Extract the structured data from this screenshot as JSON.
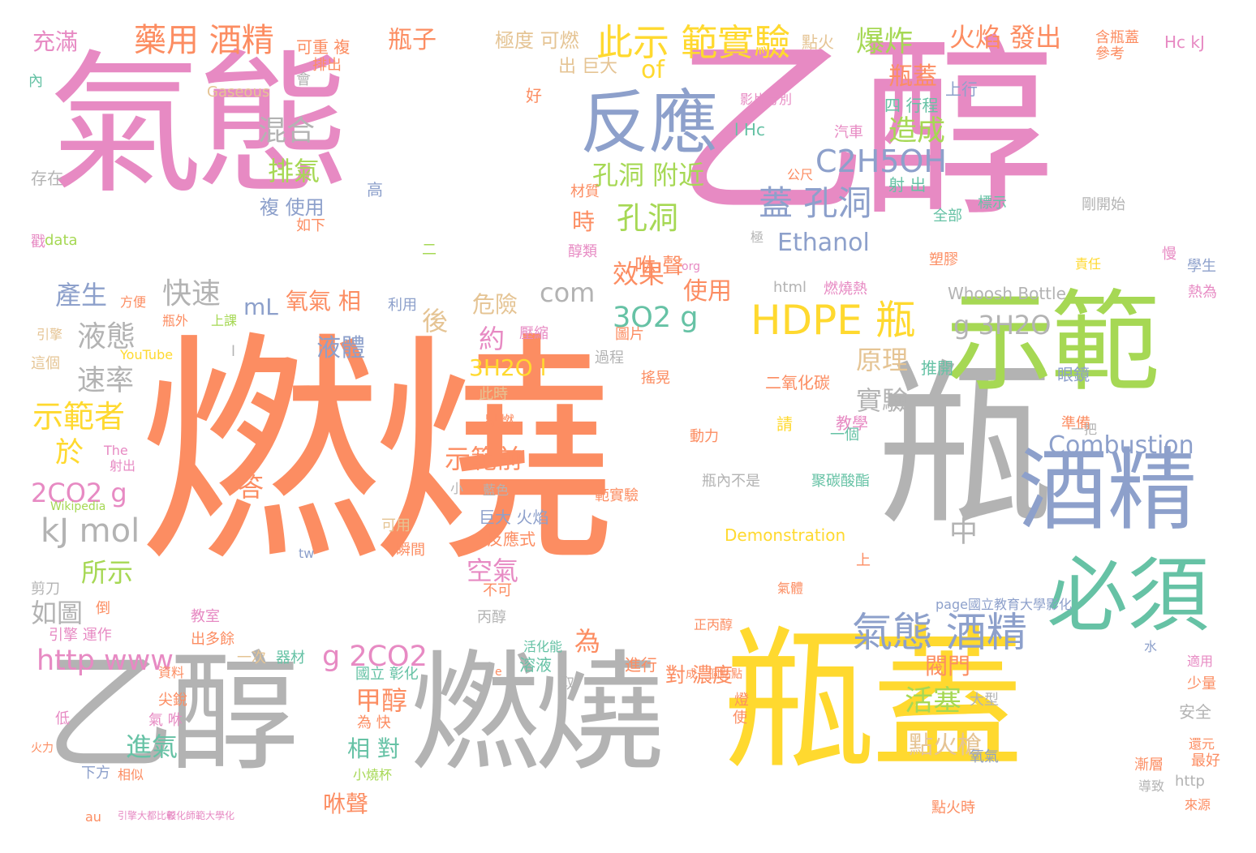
{
  "palette": {
    "orange": "#fc8d62",
    "pink": "#e78ac3",
    "green": "#a6d854",
    "gray": "#b3b3b3",
    "yellow": "#ffd92f",
    "blue": "#8da0cb",
    "teal": "#66c2a5",
    "tan": "#e5c494"
  },
  "words": [
    {
      "text": "燃燒",
      "color": "orange"
    },
    {
      "text": "乙醇",
      "color": "pink"
    },
    {
      "text": "氣態",
      "color": "pink"
    },
    {
      "text": "瓶",
      "color": "gray"
    },
    {
      "text": "瓶蓋",
      "color": "yellow"
    },
    {
      "text": "燃燒",
      "color": "gray"
    },
    {
      "text": "乙醇",
      "color": "gray"
    },
    {
      "text": "示範",
      "color": "green"
    },
    {
      "text": "酒精",
      "color": "blue"
    },
    {
      "text": "必須",
      "color": "teal"
    },
    {
      "text": "反應",
      "color": "blue"
    },
    {
      "text": "氣態 酒精",
      "color": "blue"
    },
    {
      "text": "HDPE 瓶",
      "color": "yellow"
    },
    {
      "text": "此示 範實驗",
      "color": "yellow"
    },
    {
      "text": "藥用 酒精",
      "color": "orange"
    },
    {
      "text": "蓋 孔洞",
      "color": "blue"
    },
    {
      "text": "爆炸",
      "color": "green"
    },
    {
      "text": "火焰 發出",
      "color": "orange"
    },
    {
      "text": "瓶子",
      "color": "orange"
    },
    {
      "text": "充滿",
      "color": "pink"
    },
    {
      "text": "瓶蓋",
      "color": "orange"
    },
    {
      "text": "造成",
      "color": "green"
    },
    {
      "text": "C2H5OH",
      "color": "blue"
    },
    {
      "text": "孔洞",
      "color": "green"
    },
    {
      "text": "混合",
      "color": "gray"
    },
    {
      "text": "排氣",
      "color": "green"
    },
    {
      "text": "孔洞 附近",
      "color": "green"
    },
    {
      "text": "Combustion",
      "color": "blue"
    },
    {
      "text": "kJ mol",
      "color": "gray"
    },
    {
      "text": "示範者",
      "color": "yellow"
    },
    {
      "text": "速率",
      "color": "gray"
    },
    {
      "text": "液態",
      "color": "gray"
    },
    {
      "text": "快速",
      "color": "gray"
    },
    {
      "text": "產生",
      "color": "blue"
    },
    {
      "text": "com",
      "color": "gray"
    },
    {
      "text": "效果",
      "color": "orange"
    },
    {
      "text": "3O2 g",
      "color": "teal"
    },
    {
      "text": "g 3H2O",
      "color": "gray"
    },
    {
      "text": "Ethanol",
      "color": "blue"
    },
    {
      "text": "原理",
      "color": "tan"
    },
    {
      "text": "實驗",
      "color": "gray"
    },
    {
      "text": "於",
      "color": "yellow"
    },
    {
      "text": "2CO2 g",
      "color": "pink"
    },
    {
      "text": "示範前",
      "color": "orange"
    },
    {
      "text": "如圖",
      "color": "gray"
    },
    {
      "text": "所示",
      "color": "green"
    },
    {
      "text": "http www",
      "color": "pink"
    },
    {
      "text": "g 2CO2",
      "color": "pink"
    },
    {
      "text": "中",
      "color": "gray"
    },
    {
      "text": "活塞",
      "color": "green"
    },
    {
      "text": "點火槍",
      "color": "tan"
    },
    {
      "text": "咻聲",
      "color": "orange"
    },
    {
      "text": "進氣",
      "color": "teal"
    },
    {
      "text": "相 對",
      "color": "teal"
    },
    {
      "text": "甲醇",
      "color": "orange"
    },
    {
      "text": "為",
      "color": "orange"
    },
    {
      "text": "空氣",
      "color": "pink"
    },
    {
      "text": "答",
      "color": "orange"
    },
    {
      "text": "後",
      "color": "tan"
    },
    {
      "text": "約",
      "color": "pink"
    },
    {
      "text": "危險",
      "color": "tan"
    },
    {
      "text": "使用",
      "color": "orange"
    },
    {
      "text": "時",
      "color": "orange"
    },
    {
      "text": "咻 聲",
      "color": "orange"
    },
    {
      "text": "mL",
      "color": "blue"
    },
    {
      "text": "氧氣 相",
      "color": "orange"
    },
    {
      "text": "液體",
      "color": "blue"
    },
    {
      "text": "3H2O l",
      "color": "yellow"
    },
    {
      "text": "of",
      "color": "yellow"
    },
    {
      "text": "閥門",
      "color": "orange"
    },
    {
      "text": "對 濃度",
      "color": "orange"
    },
    {
      "text": "複 使用",
      "color": "blue"
    },
    {
      "text": "極度 可燃",
      "color": "tan"
    },
    {
      "text": "可重 複",
      "color": "orange"
    },
    {
      "text": "排出",
      "color": "orange"
    },
    {
      "text": "出 巨大",
      "color": "tan"
    },
    {
      "text": "點火",
      "color": "tan"
    },
    {
      "text": "含瓶蓋",
      "color": "orange"
    },
    {
      "text": "參考",
      "color": "orange"
    },
    {
      "text": "Hc kJ",
      "color": "pink"
    },
    {
      "text": "Gaseous",
      "color": "tan"
    },
    {
      "text": "內",
      "color": "teal"
    },
    {
      "text": "會",
      "color": "gray"
    },
    {
      "text": "好",
      "color": "orange"
    },
    {
      "text": "上行",
      "color": "blue"
    },
    {
      "text": "四 行程",
      "color": "teal"
    },
    {
      "text": "影片分別",
      "color": "pink"
    },
    {
      "text": "l Hc",
      "color": "teal"
    },
    {
      "text": "汽車",
      "color": "pink"
    },
    {
      "text": "射 出",
      "color": "teal"
    },
    {
      "text": "存在",
      "color": "gray"
    },
    {
      "text": "高",
      "color": "blue"
    },
    {
      "text": "材質",
      "color": "orange"
    },
    {
      "text": "公尺",
      "color": "orange"
    },
    {
      "text": "全部",
      "color": "teal"
    },
    {
      "text": "標示",
      "color": "teal"
    },
    {
      "text": "剛開始",
      "color": "gray"
    },
    {
      "text": "如下",
      "color": "orange"
    },
    {
      "text": "data",
      "color": "green"
    },
    {
      "text": "戳",
      "color": "pink"
    },
    {
      "text": "二",
      "color": "green"
    },
    {
      "text": "醇類",
      "color": "pink"
    },
    {
      "text": "極",
      "color": "gray"
    },
    {
      "text": "塑膠",
      "color": "orange"
    },
    {
      "text": "責任",
      "color": "yellow"
    },
    {
      "text": "慢",
      "color": "pink"
    },
    {
      "text": "學生",
      "color": "blue"
    },
    {
      "text": "方便",
      "color": "orange"
    },
    {
      "text": "利用",
      "color": "blue"
    },
    {
      "text": "html",
      "color": "gray"
    },
    {
      "text": "燃燒熱",
      "color": "pink"
    },
    {
      "text": "Whoosh Bottle",
      "color": "gray"
    },
    {
      "text": "熱為",
      "color": "pink"
    },
    {
      "text": "org",
      "color": "pink"
    },
    {
      "text": "引擎",
      "color": "tan"
    },
    {
      "text": "瓶外",
      "color": "orange"
    },
    {
      "text": "上課",
      "color": "green"
    },
    {
      "text": "圖片",
      "color": "orange"
    },
    {
      "text": "壓縮",
      "color": "pink"
    },
    {
      "text": "YouTube",
      "color": "yellow"
    },
    {
      "text": "l",
      "color": "gray"
    },
    {
      "text": "過程",
      "color": "gray"
    },
    {
      "text": "這個",
      "color": "tan"
    },
    {
      "text": "推開",
      "color": "teal"
    },
    {
      "text": "眼鏡",
      "color": "blue"
    },
    {
      "text": "搖晃",
      "color": "orange"
    },
    {
      "text": "二氧化碳",
      "color": "orange"
    },
    {
      "text": "此時",
      "color": "tan"
    },
    {
      "text": "點燃",
      "color": "orange"
    },
    {
      "text": "請",
      "color": "yellow"
    },
    {
      "text": "教學",
      "color": "pink"
    },
    {
      "text": "準備",
      "color": "orange"
    },
    {
      "text": "一把",
      "color": "gray"
    },
    {
      "text": "The",
      "color": "pink"
    },
    {
      "text": "動力",
      "color": "orange"
    },
    {
      "text": "一個",
      "color": "teal"
    },
    {
      "text": "射出",
      "color": "pink"
    },
    {
      "text": "瓶內不是",
      "color": "gray"
    },
    {
      "text": "聚碳酸酯",
      "color": "teal"
    },
    {
      "text": "小",
      "color": "gray"
    },
    {
      "text": "藍色",
      "color": "gray"
    },
    {
      "text": "範實驗",
      "color": "orange"
    },
    {
      "text": "Wikipedia",
      "color": "green"
    },
    {
      "text": "巨大 火焰",
      "color": "blue"
    },
    {
      "text": "可用",
      "color": "tan"
    },
    {
      "text": "反應式",
      "color": "orange"
    },
    {
      "text": "Demonstration",
      "color": "yellow"
    },
    {
      "text": "tw",
      "color": "blue"
    },
    {
      "text": "瞬間",
      "color": "orange"
    },
    {
      "text": "上",
      "color": "orange"
    },
    {
      "text": "剪刀",
      "color": "gray"
    },
    {
      "text": "不可",
      "color": "orange"
    },
    {
      "text": "氣體",
      "color": "orange"
    },
    {
      "text": "page國立教育大學影化",
      "color": "blue"
    },
    {
      "text": "倒",
      "color": "orange"
    },
    {
      "text": "教室",
      "color": "pink"
    },
    {
      "text": "丙醇",
      "color": "gray"
    },
    {
      "text": "正丙醇",
      "color": "orange"
    },
    {
      "text": "引擎 運作",
      "color": "pink"
    },
    {
      "text": "出多餘",
      "color": "orange"
    },
    {
      "text": "活化能",
      "color": "teal"
    },
    {
      "text": "水",
      "color": "blue"
    },
    {
      "text": "適用",
      "color": "pink"
    },
    {
      "text": "一次",
      "color": "tan"
    },
    {
      "text": "器材",
      "color": "teal"
    },
    {
      "text": "國立 彰化",
      "color": "teal"
    },
    {
      "text": "溶液",
      "color": "teal"
    },
    {
      "text": "進行",
      "color": "orange"
    },
    {
      "text": "成一個點點",
      "color": "orange"
    },
    {
      "text": "資料",
      "color": "orange"
    },
    {
      "text": "e",
      "color": "orange"
    },
    {
      "text": "取",
      "color": "gray"
    },
    {
      "text": "少量",
      "color": "orange"
    },
    {
      "text": "尖銳",
      "color": "orange"
    },
    {
      "text": "為 快",
      "color": "orange"
    },
    {
      "text": "大型",
      "color": "gray"
    },
    {
      "text": "燈",
      "color": "orange"
    },
    {
      "text": "安全",
      "color": "gray"
    },
    {
      "text": "低",
      "color": "pink"
    },
    {
      "text": "氣 咻",
      "color": "pink"
    },
    {
      "text": "使",
      "color": "orange"
    },
    {
      "text": "最好",
      "color": "orange"
    },
    {
      "text": "還元",
      "color": "orange"
    },
    {
      "text": "漸層",
      "color": "orange"
    },
    {
      "text": "氧氣",
      "color": "blue"
    },
    {
      "text": "導致",
      "color": "gray"
    },
    {
      "text": "火力",
      "color": "orange"
    },
    {
      "text": "下方",
      "color": "blue"
    },
    {
      "text": "相似",
      "color": "orange"
    },
    {
      "text": "小燒杯",
      "color": "green"
    },
    {
      "text": "http",
      "color": "gray"
    },
    {
      "text": "點火時",
      "color": "orange"
    },
    {
      "text": "來源",
      "color": "orange"
    },
    {
      "text": "au",
      "color": "orange"
    },
    {
      "text": "引擎大都比較",
      "color": "pink"
    },
    {
      "text": "彰化師範大學化",
      "color": "pink"
    }
  ]
}
